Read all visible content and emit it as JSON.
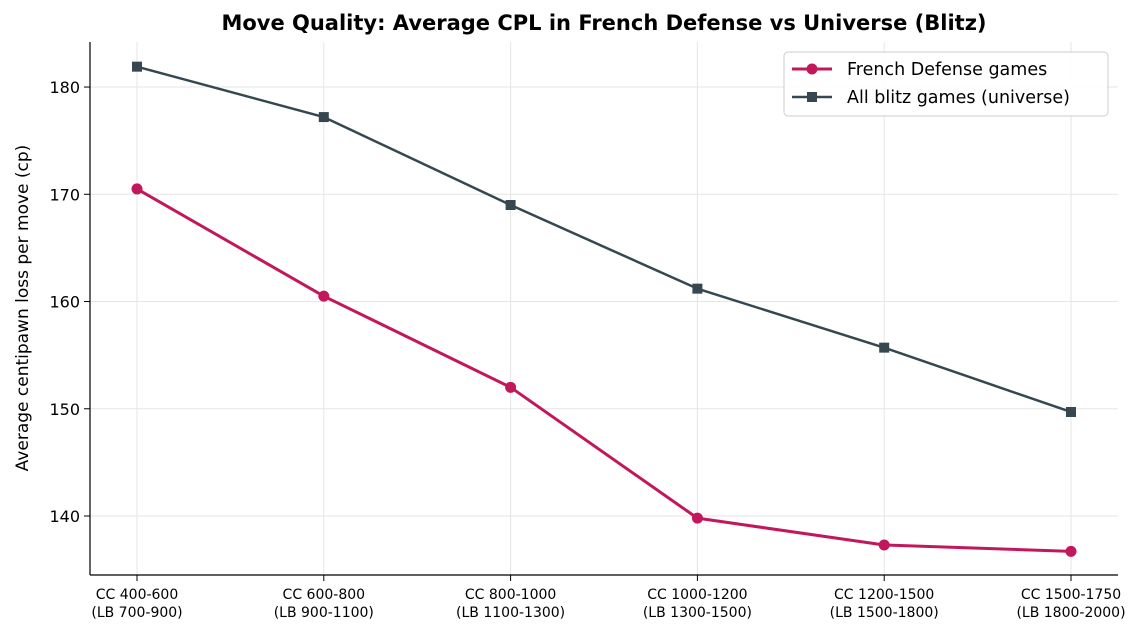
{
  "chart_data": {
    "type": "line",
    "title": "Move Quality: Average CPL in French Defense vs Universe (Blitz)",
    "xlabel": "",
    "ylabel": "Average centipawn loss per move (cp)",
    "categories": [
      [
        "CC 400-600",
        "(LB 700-900)"
      ],
      [
        "CC 600-800",
        "(LB 900-1100)"
      ],
      [
        "CC 800-1000",
        "(LB 1100-1300)"
      ],
      [
        "CC 1000-1200",
        "(LB 1300-1500)"
      ],
      [
        "CC 1200-1500",
        "(LB 1500-1800)"
      ],
      [
        "CC 1500-1750",
        "(LB 1800-2000)"
      ]
    ],
    "series": [
      {
        "name": "French Defense games",
        "color": "#c2185b",
        "marker": "circle",
        "values": [
          170.5,
          160.5,
          152.0,
          139.8,
          137.3,
          136.7
        ]
      },
      {
        "name": "All blitz games (universe)",
        "color": "#37474f",
        "marker": "square",
        "values": [
          181.9,
          177.2,
          169.0,
          161.2,
          155.7,
          149.7
        ]
      }
    ],
    "ylim": [
      134.5,
      184.2
    ],
    "yticks": [
      140,
      150,
      160,
      170,
      180
    ],
    "grid": true,
    "legend": "top-right"
  }
}
